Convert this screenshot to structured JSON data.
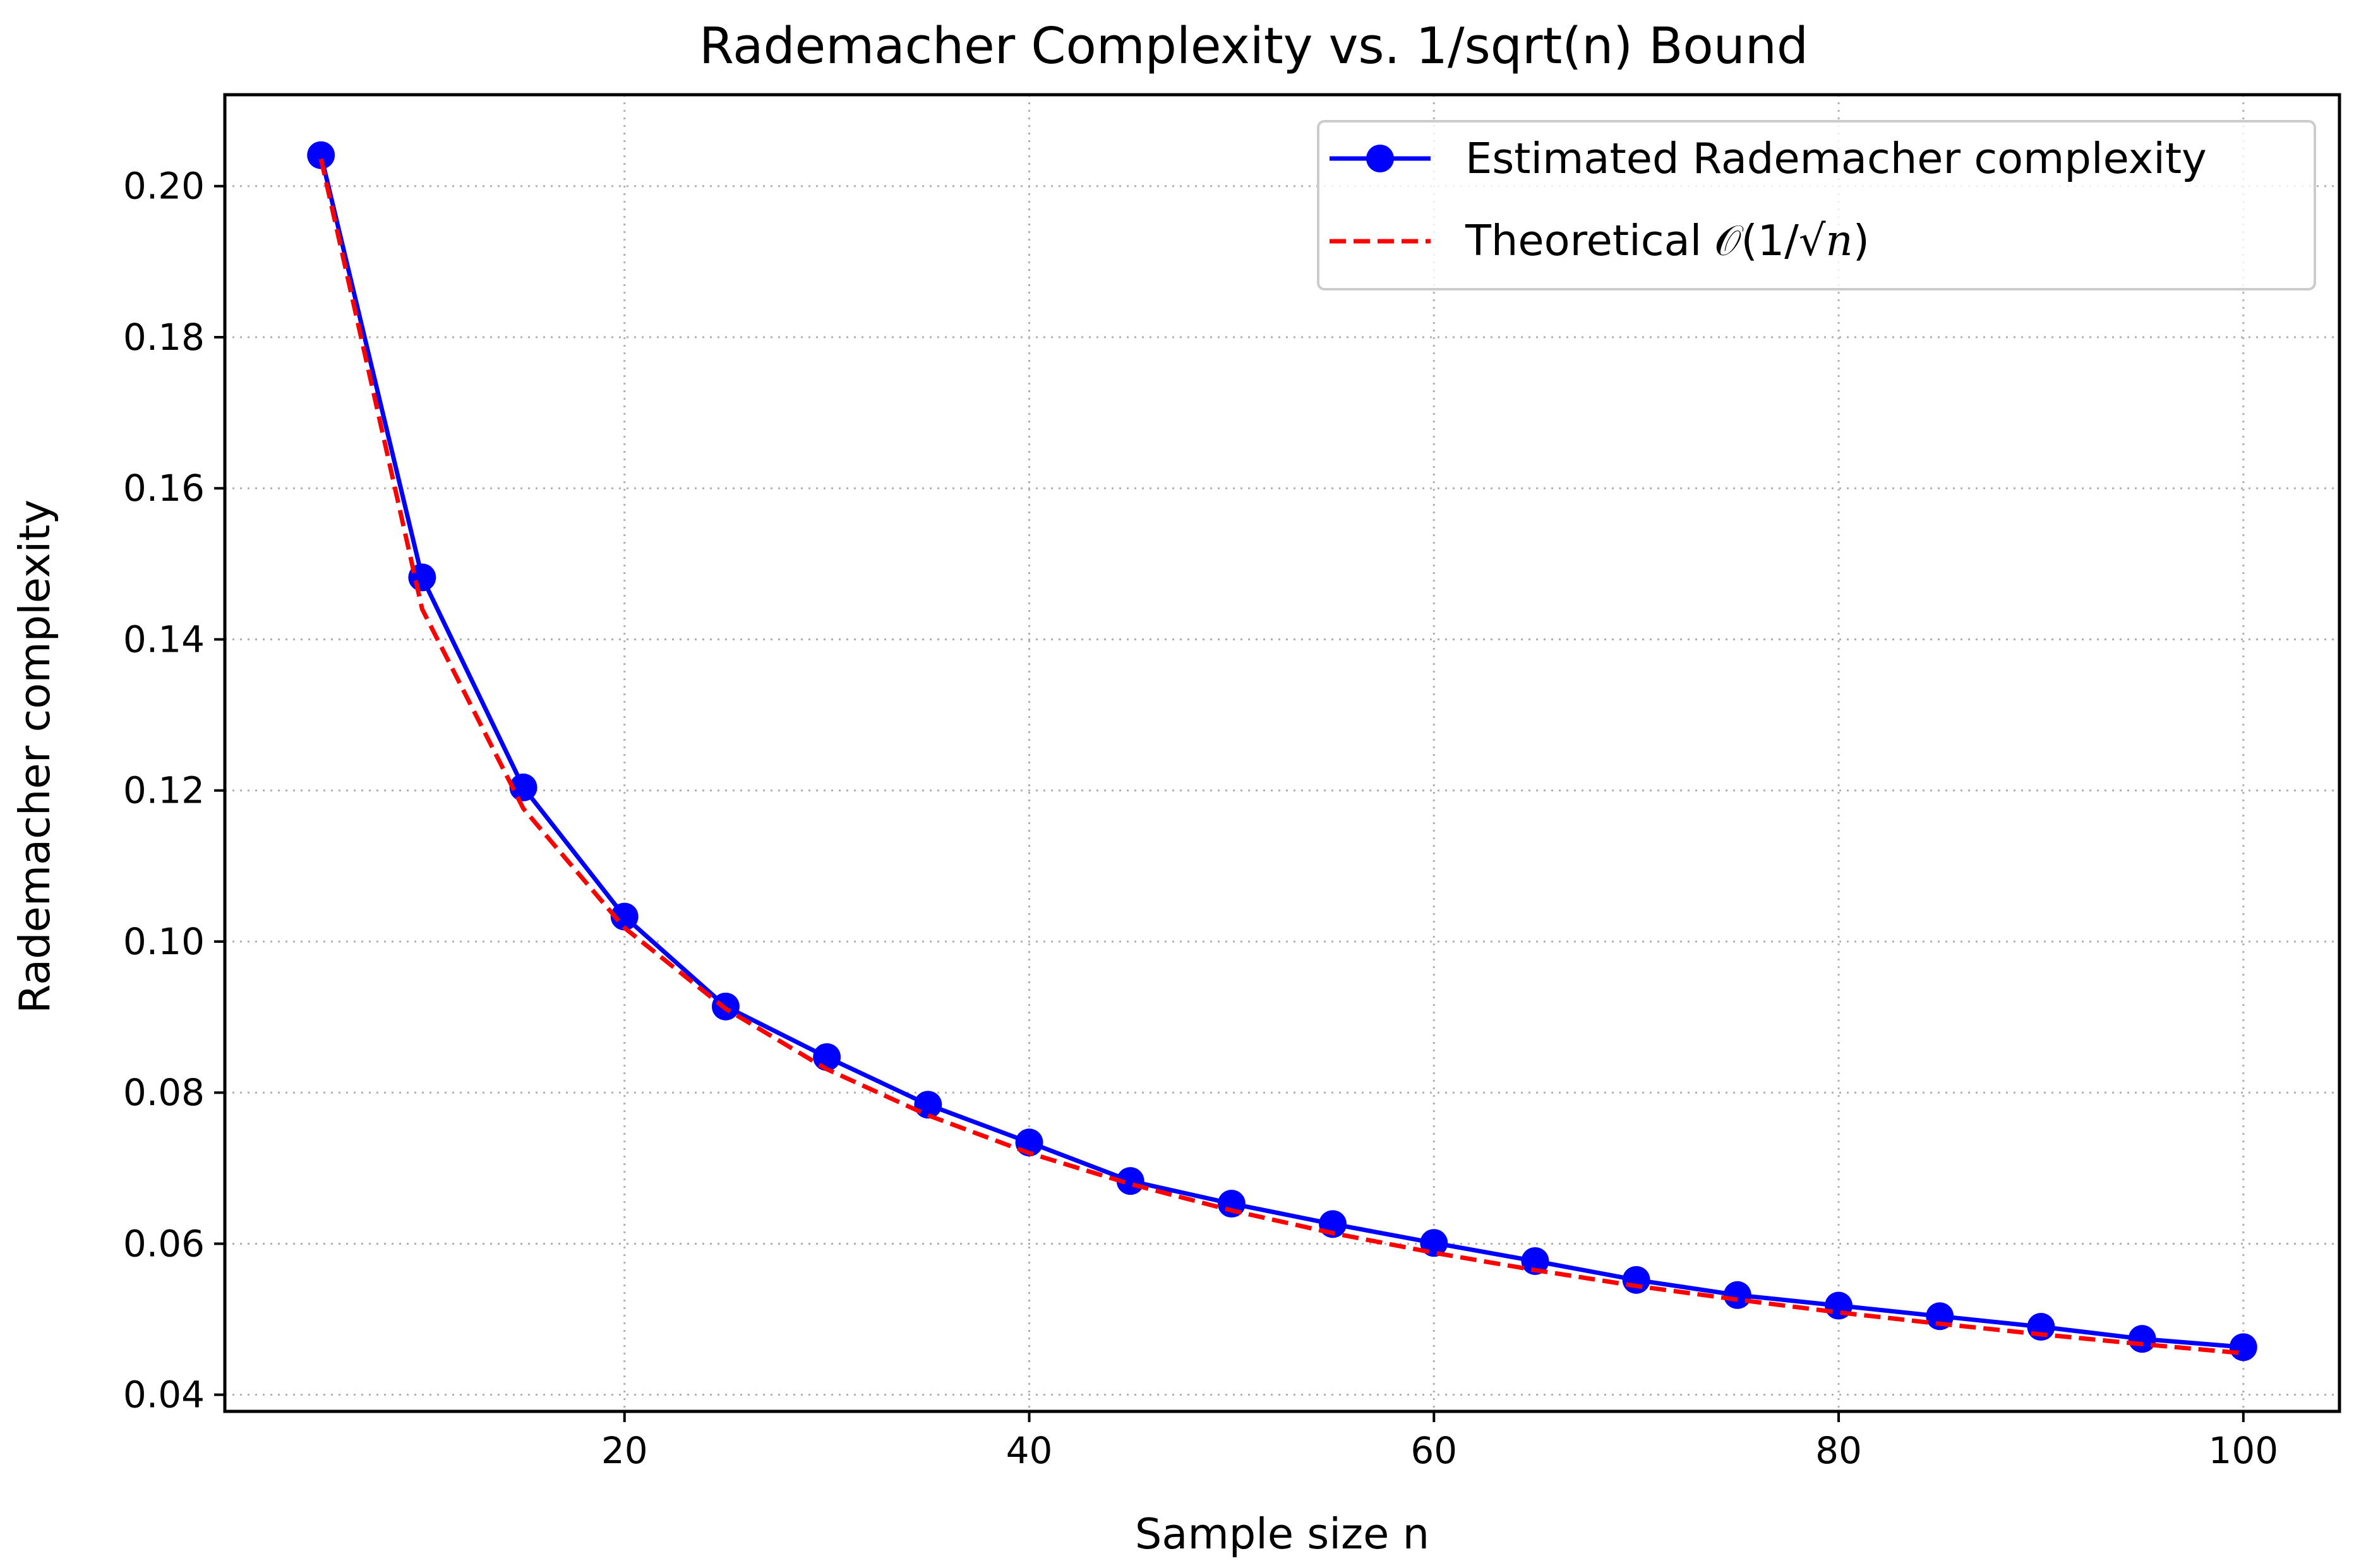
{
  "chart_data": {
    "type": "line",
    "title": "Rademacher Complexity vs. 1/sqrt(n) Bound",
    "xlabel": "Sample size n",
    "ylabel": "Rademacher complexity",
    "xlim": [
      0.25,
      104.75
    ],
    "ylim": [
      0.0378,
      0.2121
    ],
    "xticks": [
      20,
      40,
      60,
      80,
      100
    ],
    "xtick_labels": [
      "20",
      "40",
      "60",
      "80",
      "100"
    ],
    "yticks": [
      0.04,
      0.06,
      0.08,
      0.1,
      0.12,
      0.14,
      0.16,
      0.18,
      0.2
    ],
    "ytick_labels": [
      "0.04",
      "0.06",
      "0.08",
      "0.10",
      "0.12",
      "0.14",
      "0.16",
      "0.18",
      "0.20"
    ],
    "grid": true,
    "legend_position": "top-right",
    "x": [
      5,
      10,
      15,
      20,
      25,
      30,
      35,
      40,
      45,
      50,
      55,
      60,
      65,
      70,
      75,
      80,
      85,
      90,
      95,
      100
    ],
    "series": [
      {
        "name": "Estimated Rademacher complexity",
        "style": "solid-marker",
        "color": "#0000ff",
        "values": [
          0.2041,
          0.1482,
          0.1204,
          0.1033,
          0.0914,
          0.0847,
          0.0784,
          0.0734,
          0.0683,
          0.0653,
          0.0626,
          0.0601,
          0.0577,
          0.0552,
          0.0532,
          0.0518,
          0.0504,
          0.049,
          0.0474,
          0.0463
        ]
      },
      {
        "name": "Theoretical",
        "name_math_prefix": "𝒪(1/√",
        "name_math_var": "n",
        "name_math_suffix": ")",
        "style": "dashed",
        "color": "#ff0000",
        "values": [
          0.2036,
          0.144,
          0.1176,
          0.1018,
          0.0911,
          0.0831,
          0.077,
          0.072,
          0.0679,
          0.0644,
          0.0614,
          0.0588,
          0.0565,
          0.0544,
          0.0526,
          0.0509,
          0.0494,
          0.048,
          0.0467,
          0.0455
        ]
      }
    ]
  }
}
